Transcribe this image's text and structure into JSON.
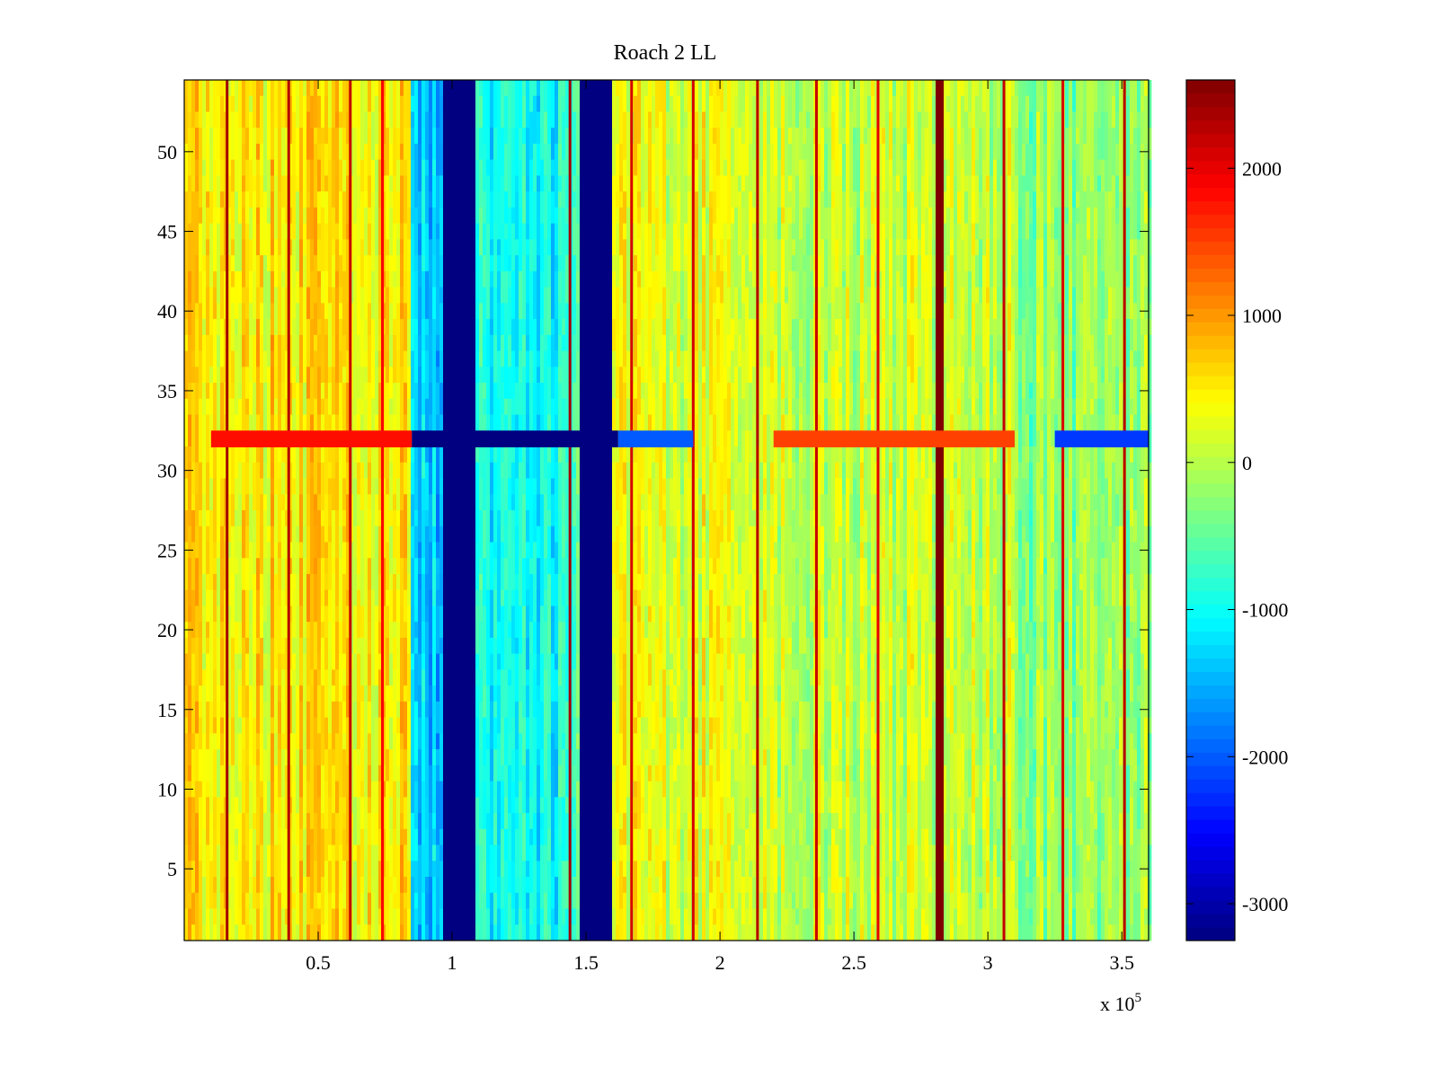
{
  "chart_data": {
    "type": "heatmap",
    "title": "Roach 2 LL",
    "xlabel": "",
    "ylabel": "",
    "x_multiplier_label": "x 10",
    "x_multiplier_exponent": "5",
    "xlim": [
      0,
      3.6
    ],
    "ylim": [
      0.5,
      54.5
    ],
    "x_ticks": [
      0.5,
      1,
      1.5,
      2,
      2.5,
      3,
      3.5
    ],
    "x_tick_labels": [
      "0.5",
      "1",
      "1.5",
      "2",
      "2.5",
      "3",
      "3.5"
    ],
    "y_ticks": [
      5,
      10,
      15,
      20,
      25,
      30,
      35,
      40,
      45,
      50
    ],
    "y_tick_labels": [
      "5",
      "10",
      "15",
      "20",
      "25",
      "30",
      "35",
      "40",
      "45",
      "50"
    ],
    "colorbar": {
      "colormap": "jet",
      "clim": [
        -3250,
        2600
      ],
      "ticks": [
        2000,
        1000,
        0,
        -1000,
        -2000,
        -3000
      ],
      "tick_labels": [
        "2000",
        "1000",
        "0",
        "-1000",
        "-2000",
        "-3000"
      ]
    },
    "rows": 54,
    "regions": [
      {
        "x": [
          0.0,
          0.85
        ],
        "value": 500,
        "description": "warm band"
      },
      {
        "x": [
          0.85,
          0.97
        ],
        "value": -1300
      },
      {
        "x": [
          0.97,
          1.09
        ],
        "value": -3250,
        "description": "blanked channels"
      },
      {
        "x": [
          1.09,
          1.43
        ],
        "value": -950
      },
      {
        "x": [
          1.43,
          1.48
        ],
        "value": -600
      },
      {
        "x": [
          1.48,
          1.6
        ],
        "value": -3250,
        "description": "blanked channels"
      },
      {
        "x": [
          1.6,
          2.2
        ],
        "value": 250
      },
      {
        "x": [
          2.2,
          3.1
        ],
        "value": 100
      },
      {
        "x": [
          3.1,
          3.6
        ],
        "value": -250
      }
    ],
    "vertical_lines": [
      {
        "x": 0.16,
        "value": 2400
      },
      {
        "x": 0.39,
        "value": 2300
      },
      {
        "x": 0.62,
        "value": 2200
      },
      {
        "x": 0.74,
        "value": 1900
      },
      {
        "x": 1.44,
        "value": 2400
      },
      {
        "x": 1.67,
        "value": 2100
      },
      {
        "x": 1.9,
        "value": 2100
      },
      {
        "x": 2.14,
        "value": 2300
      },
      {
        "x": 2.36,
        "value": 2200
      },
      {
        "x": 2.59,
        "value": 2000
      },
      {
        "x": 2.82,
        "value": 2600
      },
      {
        "x": 3.06,
        "value": 2200
      },
      {
        "x": 3.28,
        "value": 2100
      },
      {
        "x": 3.51,
        "value": 2300
      }
    ],
    "horizontal_feature": {
      "row": 32,
      "segments": [
        {
          "x": [
            0.1,
            0.85
          ],
          "value": 1800
        },
        {
          "x": [
            0.85,
            1.62
          ],
          "value": -3250
        },
        {
          "x": [
            1.62,
            1.9
          ],
          "value": -2000
        },
        {
          "x": [
            2.2,
            3.1
          ],
          "value": 1500
        },
        {
          "x": [
            3.25,
            3.6
          ],
          "value": -2200
        }
      ]
    }
  }
}
